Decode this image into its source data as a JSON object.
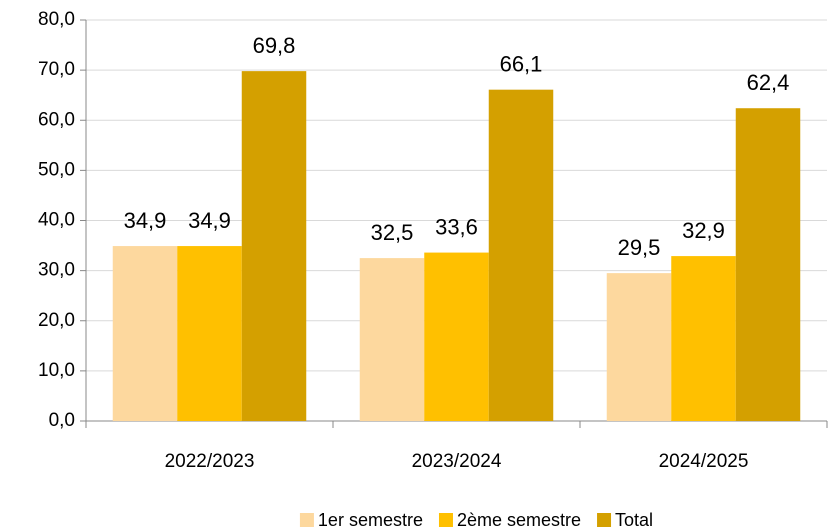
{
  "chart_data": {
    "type": "bar",
    "categories": [
      "2022/2023",
      "2023/2024",
      "2024/2025"
    ],
    "series": [
      {
        "name": "1er semestre",
        "color": "#fdd89e",
        "values": [
          34.9,
          32.5,
          29.5
        ],
        "value_labels": [
          "34,9",
          "32,5",
          "29,5"
        ]
      },
      {
        "name": "2ème semestre",
        "color": "#ffc000",
        "values": [
          34.9,
          33.6,
          32.9
        ],
        "value_labels": [
          "34,9",
          "33,6",
          "32,9"
        ]
      },
      {
        "name": "Total",
        "color": "#d4a000",
        "values": [
          69.8,
          66.1,
          62.4
        ],
        "value_labels": [
          "69,8",
          "66,1",
          "62,4"
        ]
      }
    ],
    "ylim": [
      0,
      80
    ],
    "yticks": [
      {
        "value": 0,
        "label": "0,0"
      },
      {
        "value": 10,
        "label": "10,0"
      },
      {
        "value": 20,
        "label": "20,0"
      },
      {
        "value": 30,
        "label": "30,0"
      },
      {
        "value": 40,
        "label": "40,0"
      },
      {
        "value": 50,
        "label": "50,0"
      },
      {
        "value": 60,
        "label": "60,0"
      },
      {
        "value": 70,
        "label": "70,0"
      },
      {
        "value": 80,
        "label": "80,0"
      }
    ],
    "grid": true,
    "legend": "bottom"
  }
}
